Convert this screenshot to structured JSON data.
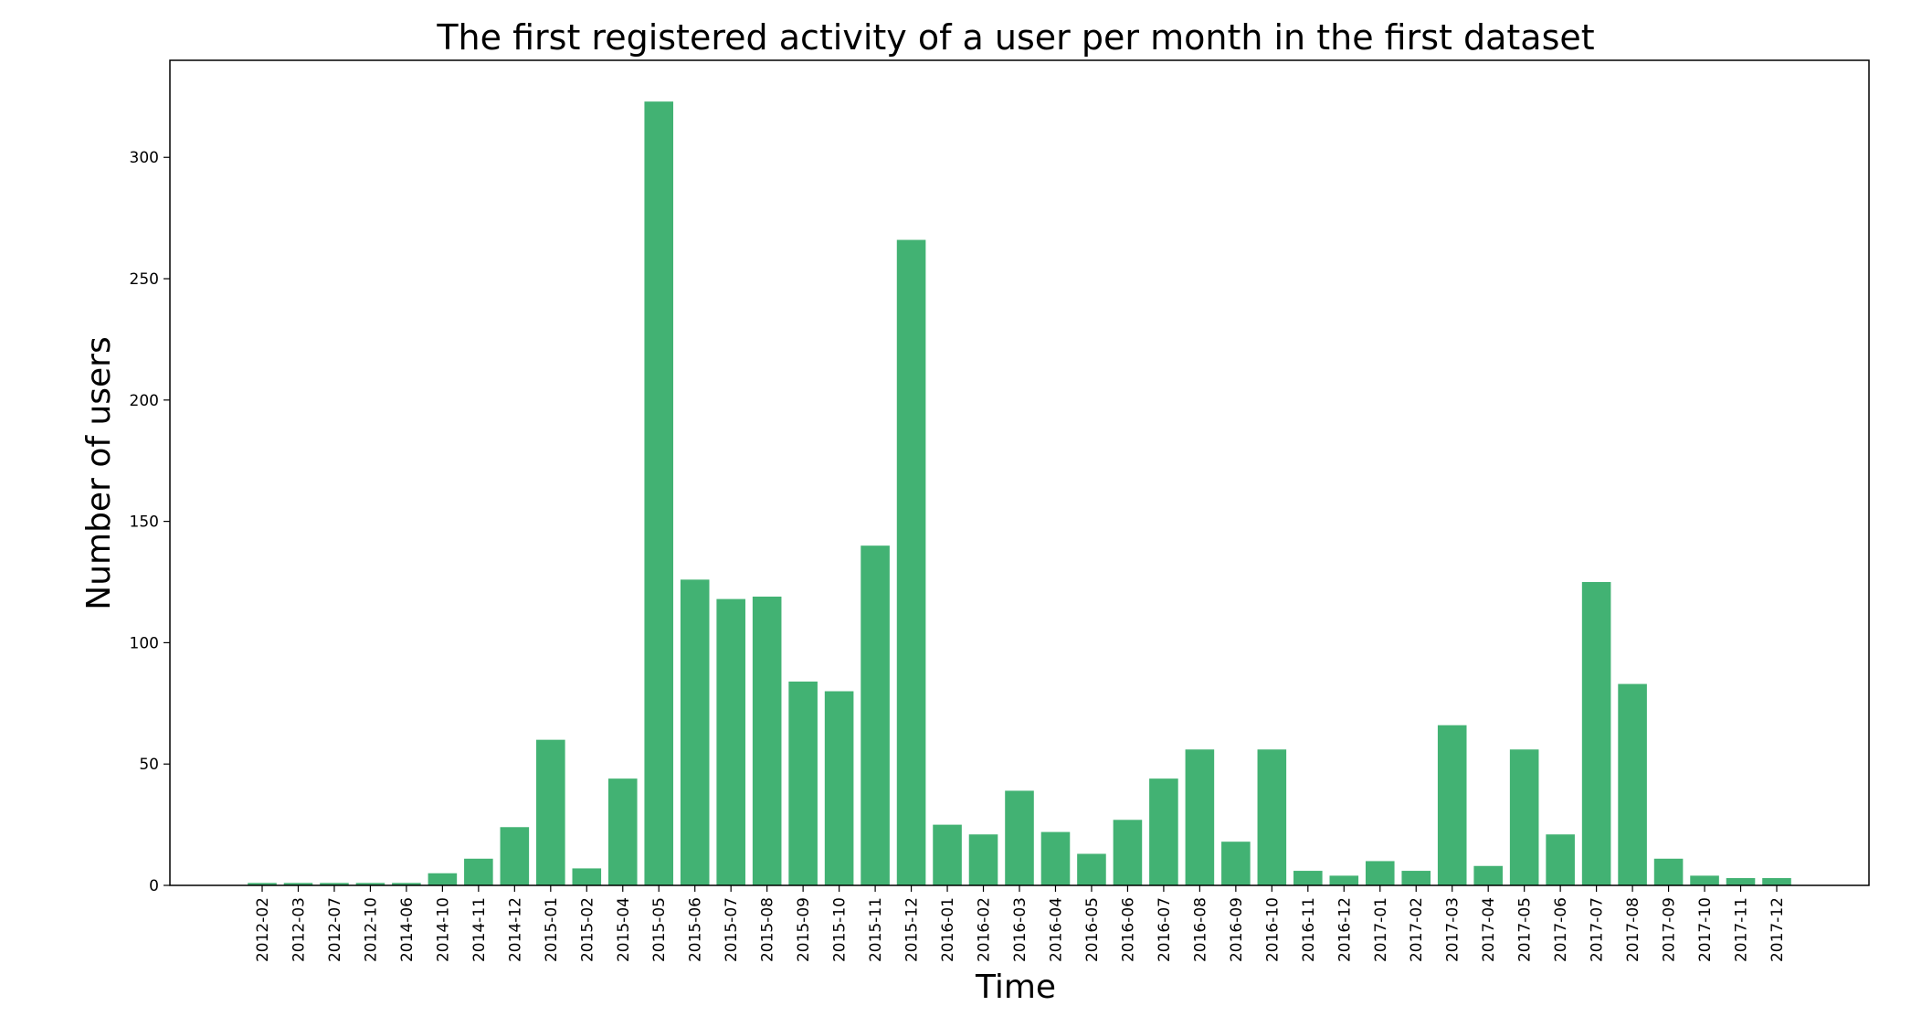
{
  "colors": {
    "bar": "#42b273",
    "axis": "#000000",
    "background": "#ffffff"
  },
  "chart_data": {
    "type": "bar",
    "title": "The first registered activity of a user per month in the first dataset",
    "xlabel": "Time",
    "ylabel": "Number of users",
    "ylim": [
      0,
      340
    ],
    "yticks": [
      0,
      50,
      100,
      150,
      200,
      250,
      300
    ],
    "grid": false,
    "categories": [
      "2012-02",
      "2012-03",
      "2012-07",
      "2012-10",
      "2014-06",
      "2014-10",
      "2014-11",
      "2014-12",
      "2015-01",
      "2015-02",
      "2015-04",
      "2015-05",
      "2015-06",
      "2015-07",
      "2015-08",
      "2015-09",
      "2015-10",
      "2015-11",
      "2015-12",
      "2016-01",
      "2016-02",
      "2016-03",
      "2016-04",
      "2016-05",
      "2016-06",
      "2016-07",
      "2016-08",
      "2016-09",
      "2016-10",
      "2016-11",
      "2016-12",
      "2017-01",
      "2017-02",
      "2017-03",
      "2017-04",
      "2017-05",
      "2017-06",
      "2017-07",
      "2017-08",
      "2017-09",
      "2017-10",
      "2017-11",
      "2017-12"
    ],
    "values": [
      1,
      1,
      1,
      1,
      1,
      5,
      11,
      24,
      60,
      7,
      44,
      323,
      126,
      118,
      119,
      84,
      80,
      140,
      266,
      25,
      21,
      39,
      22,
      13,
      27,
      44,
      56,
      18,
      56,
      6,
      4,
      10,
      6,
      66,
      8,
      56,
      21,
      125,
      83,
      11,
      4,
      3,
      3
    ]
  }
}
